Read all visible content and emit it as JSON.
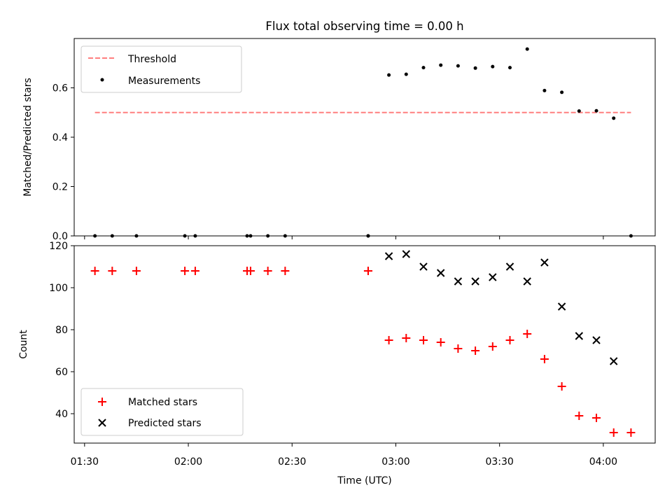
{
  "figure": {
    "title": "Flux total observing time = 0.00 h"
  },
  "chart_data": [
    {
      "type": "scatter",
      "title": "Flux total observing time = 0.00 h",
      "xlabel": "",
      "ylabel": "Matched/Predicted stars",
      "ylim": [
        0,
        0.8
      ],
      "yticks": [
        0.0,
        0.2,
        0.4,
        0.6
      ],
      "ytick_labels": [
        "0.0",
        "0.2",
        "0.4",
        "0.6"
      ],
      "grid": false,
      "legend": {
        "placement": "upper-left",
        "entries": [
          "Threshold",
          "Measurements"
        ]
      },
      "threshold": {
        "name": "Threshold",
        "value": 0.5,
        "x_start": "01:33",
        "x_end": "04:08",
        "color": "#ff7f7f",
        "style": "dashed"
      },
      "series": [
        {
          "name": "Measurements",
          "marker": "dot",
          "color": "#000000",
          "points": [
            {
              "x": "01:33",
              "y": 0.0
            },
            {
              "x": "01:38",
              "y": 0.0
            },
            {
              "x": "01:45",
              "y": 0.0
            },
            {
              "x": "01:59",
              "y": 0.0
            },
            {
              "x": "02:02",
              "y": 0.0
            },
            {
              "x": "02:17",
              "y": 0.0
            },
            {
              "x": "02:18",
              "y": 0.0
            },
            {
              "x": "02:23",
              "y": 0.0
            },
            {
              "x": "02:28",
              "y": 0.0
            },
            {
              "x": "02:52",
              "y": 0.0
            },
            {
              "x": "02:52",
              "y": 0.0
            },
            {
              "x": "02:58",
              "y": 0.652
            },
            {
              "x": "03:03",
              "y": 0.655
            },
            {
              "x": "03:08",
              "y": 0.682
            },
            {
              "x": "03:13",
              "y": 0.692
            },
            {
              "x": "03:18",
              "y": 0.689
            },
            {
              "x": "03:23",
              "y": 0.68
            },
            {
              "x": "03:28",
              "y": 0.686
            },
            {
              "x": "03:33",
              "y": 0.682
            },
            {
              "x": "03:38",
              "y": 0.757
            },
            {
              "x": "03:43",
              "y": 0.589
            },
            {
              "x": "03:48",
              "y": 0.582
            },
            {
              "x": "03:53",
              "y": 0.506
            },
            {
              "x": "03:58",
              "y": 0.507
            },
            {
              "x": "04:03",
              "y": 0.477
            },
            {
              "x": "04:08",
              "y": 0.0
            }
          ]
        }
      ]
    },
    {
      "type": "scatter",
      "title": "",
      "xlabel": "Time (UTC)",
      "ylabel": "Count",
      "ylim": [
        26,
        120
      ],
      "yticks": [
        40,
        60,
        80,
        100,
        120
      ],
      "ytick_labels": [
        "40",
        "60",
        "80",
        "100",
        "120"
      ],
      "xlim": [
        "01:27",
        "04:15"
      ],
      "xticks": [
        "01:30",
        "02:00",
        "02:30",
        "03:00",
        "03:30",
        "04:00"
      ],
      "xtick_labels": [
        "01:30",
        "02:00",
        "02:30",
        "03:00",
        "03:30",
        "04:00"
      ],
      "grid": false,
      "legend": {
        "placement": "lower-left",
        "entries": [
          "Matched stars",
          "Predicted stars"
        ]
      },
      "series": [
        {
          "name": "Matched stars",
          "marker": "plus",
          "color": "#ff0000",
          "points": [
            {
              "x": "01:33",
              "y": 108
            },
            {
              "x": "01:38",
              "y": 108
            },
            {
              "x": "01:45",
              "y": 108
            },
            {
              "x": "01:59",
              "y": 108
            },
            {
              "x": "02:02",
              "y": 108
            },
            {
              "x": "02:17",
              "y": 108
            },
            {
              "x": "02:18",
              "y": 108
            },
            {
              "x": "02:23",
              "y": 108
            },
            {
              "x": "02:28",
              "y": 108
            },
            {
              "x": "02:52",
              "y": 108
            },
            {
              "x": "02:52",
              "y": 108
            },
            {
              "x": "02:58",
              "y": 75
            },
            {
              "x": "03:03",
              "y": 76
            },
            {
              "x": "03:08",
              "y": 75
            },
            {
              "x": "03:13",
              "y": 74
            },
            {
              "x": "03:18",
              "y": 71
            },
            {
              "x": "03:23",
              "y": 70
            },
            {
              "x": "03:28",
              "y": 72
            },
            {
              "x": "03:33",
              "y": 75
            },
            {
              "x": "03:38",
              "y": 78
            },
            {
              "x": "03:43",
              "y": 66
            },
            {
              "x": "03:48",
              "y": 53
            },
            {
              "x": "03:53",
              "y": 39
            },
            {
              "x": "03:58",
              "y": 38
            },
            {
              "x": "04:03",
              "y": 31
            },
            {
              "x": "04:08",
              "y": 31
            }
          ]
        },
        {
          "name": "Predicted stars",
          "marker": "x",
          "color": "#000000",
          "points": [
            {
              "x": "02:58",
              "y": 115
            },
            {
              "x": "03:03",
              "y": 116
            },
            {
              "x": "03:08",
              "y": 110
            },
            {
              "x": "03:13",
              "y": 107
            },
            {
              "x": "03:18",
              "y": 103
            },
            {
              "x": "03:23",
              "y": 103
            },
            {
              "x": "03:28",
              "y": 105
            },
            {
              "x": "03:33",
              "y": 110
            },
            {
              "x": "03:38",
              "y": 103
            },
            {
              "x": "03:43",
              "y": 112
            },
            {
              "x": "03:48",
              "y": 91
            },
            {
              "x": "03:53",
              "y": 77
            },
            {
              "x": "03:58",
              "y": 75
            },
            {
              "x": "04:03",
              "y": 65
            }
          ]
        }
      ]
    }
  ]
}
